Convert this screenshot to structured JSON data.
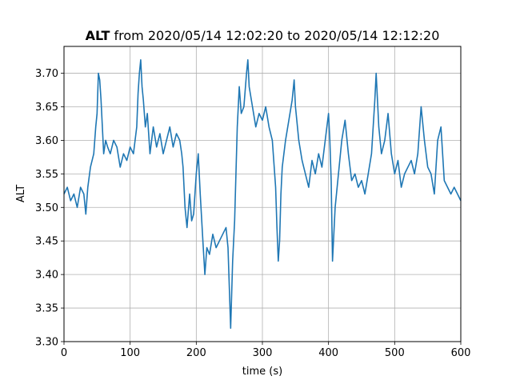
{
  "chart_data": {
    "type": "line",
    "title_bold": "ALT",
    "title_rest": " from 2020/05/14 12:02:20 to 2020/05/14 12:12:20",
    "xlabel": "time (s)",
    "ylabel": "ALT",
    "xlim": [
      0,
      600
    ],
    "ylim": [
      3.3,
      3.74
    ],
    "x_ticks": [
      "0",
      "100",
      "200",
      "300",
      "400",
      "500",
      "600"
    ],
    "y_ticks": [
      "3.30",
      "3.35",
      "3.40",
      "3.45",
      "3.50",
      "3.55",
      "3.60",
      "3.65",
      "3.70"
    ],
    "grid": true,
    "line_color": "#1f77b4",
    "series": [
      {
        "x": [
          0,
          5,
          10,
          15,
          20,
          25,
          30,
          33,
          36,
          40,
          45,
          48,
          50,
          52,
          54,
          56,
          58,
          60,
          63,
          66,
          70,
          75,
          80,
          85,
          90,
          95,
          100,
          105,
          110,
          112,
          114,
          116,
          118,
          120,
          123,
          126,
          130,
          135,
          140,
          145,
          150,
          155,
          160,
          165,
          170,
          175,
          178,
          180,
          183,
          186,
          190,
          193,
          196,
          200,
          203,
          206,
          210,
          213,
          216,
          220,
          225,
          230,
          235,
          240,
          245,
          248,
          250,
          252,
          255,
          258,
          260,
          262,
          265,
          268,
          272,
          276,
          278,
          280,
          285,
          290,
          295,
          300,
          305,
          310,
          315,
          320,
          322,
          324,
          326,
          328,
          330,
          335,
          340,
          345,
          348,
          350,
          355,
          360,
          365,
          370,
          375,
          380,
          385,
          390,
          395,
          400,
          402,
          404,
          405,
          406,
          408,
          410,
          415,
          420,
          425,
          430,
          435,
          440,
          445,
          450,
          455,
          460,
          465,
          470,
          472,
          474,
          476,
          480,
          485,
          490,
          495,
          500,
          505,
          510,
          515,
          520,
          525,
          530,
          535,
          540,
          545,
          550,
          555,
          560,
          565,
          570,
          575,
          580,
          585,
          590,
          595,
          600
        ],
        "y": [
          3.52,
          3.53,
          3.51,
          3.52,
          3.5,
          3.53,
          3.52,
          3.49,
          3.53,
          3.56,
          3.58,
          3.62,
          3.64,
          3.7,
          3.69,
          3.66,
          3.62,
          3.58,
          3.6,
          3.59,
          3.58,
          3.6,
          3.59,
          3.56,
          3.58,
          3.57,
          3.59,
          3.58,
          3.62,
          3.67,
          3.7,
          3.72,
          3.68,
          3.66,
          3.62,
          3.64,
          3.58,
          3.62,
          3.59,
          3.61,
          3.58,
          3.6,
          3.62,
          3.59,
          3.61,
          3.6,
          3.58,
          3.56,
          3.5,
          3.47,
          3.52,
          3.48,
          3.49,
          3.55,
          3.58,
          3.52,
          3.45,
          3.4,
          3.44,
          3.43,
          3.46,
          3.44,
          3.45,
          3.46,
          3.47,
          3.44,
          3.38,
          3.32,
          3.42,
          3.48,
          3.55,
          3.62,
          3.68,
          3.64,
          3.65,
          3.7,
          3.72,
          3.68,
          3.65,
          3.62,
          3.64,
          3.63,
          3.65,
          3.62,
          3.6,
          3.53,
          3.47,
          3.42,
          3.45,
          3.52,
          3.56,
          3.6,
          3.63,
          3.66,
          3.69,
          3.65,
          3.6,
          3.57,
          3.55,
          3.53,
          3.57,
          3.55,
          3.58,
          3.56,
          3.6,
          3.64,
          3.6,
          3.54,
          3.48,
          3.42,
          3.46,
          3.5,
          3.55,
          3.6,
          3.63,
          3.58,
          3.54,
          3.55,
          3.53,
          3.54,
          3.52,
          3.55,
          3.58,
          3.66,
          3.7,
          3.66,
          3.62,
          3.58,
          3.6,
          3.64,
          3.58,
          3.55,
          3.57,
          3.53,
          3.55,
          3.56,
          3.57,
          3.55,
          3.58,
          3.65,
          3.6,
          3.56,
          3.55,
          3.52,
          3.6,
          3.62,
          3.54,
          3.53,
          3.52,
          3.53,
          3.52,
          3.51
        ]
      }
    ]
  }
}
